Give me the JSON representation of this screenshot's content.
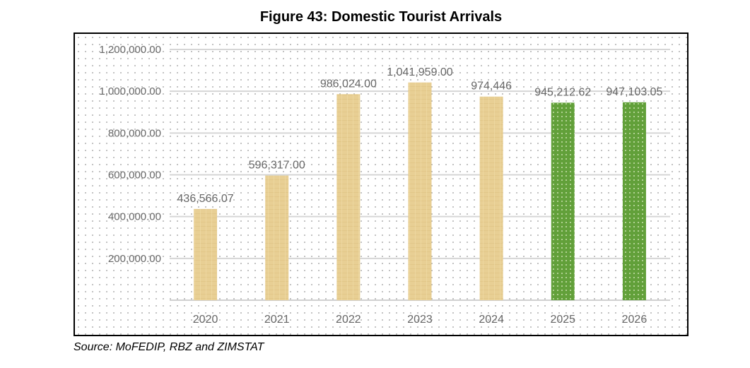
{
  "chart_data": {
    "type": "bar",
    "title": "Figure 43: Domestic Tourist Arrivals",
    "categories": [
      "2020",
      "2021",
      "2022",
      "2023",
      "2024",
      "2025",
      "2026"
    ],
    "values": [
      436566.07,
      596317.0,
      986024.0,
      1041959.0,
      974446,
      945212.62,
      947103.05
    ],
    "data_labels": [
      "436,566.07",
      "596,317.00",
      "986,024.00",
      "1,041,959.00",
      "974,446",
      "945,212.62",
      "947,103.05"
    ],
    "ylim": [
      0,
      1200000
    ],
    "yticks": [
      200000,
      400000,
      600000,
      800000,
      1000000,
      1200000
    ],
    "ytick_labels": [
      "200,000.00",
      "400,000.00",
      "600,000.00",
      "800,000.00",
      "1,000,000.00",
      "1,200,000.00"
    ],
    "xlabel": "",
    "ylabel": "",
    "grid": true,
    "bar_colors": [
      "#e8cf94",
      "#e8cf94",
      "#e8cf94",
      "#e8cf94",
      "#e8cf94",
      "#62a03a",
      "#62a03a"
    ],
    "source": "Source: MoFEDIP, RBZ and ZIMSTAT"
  }
}
